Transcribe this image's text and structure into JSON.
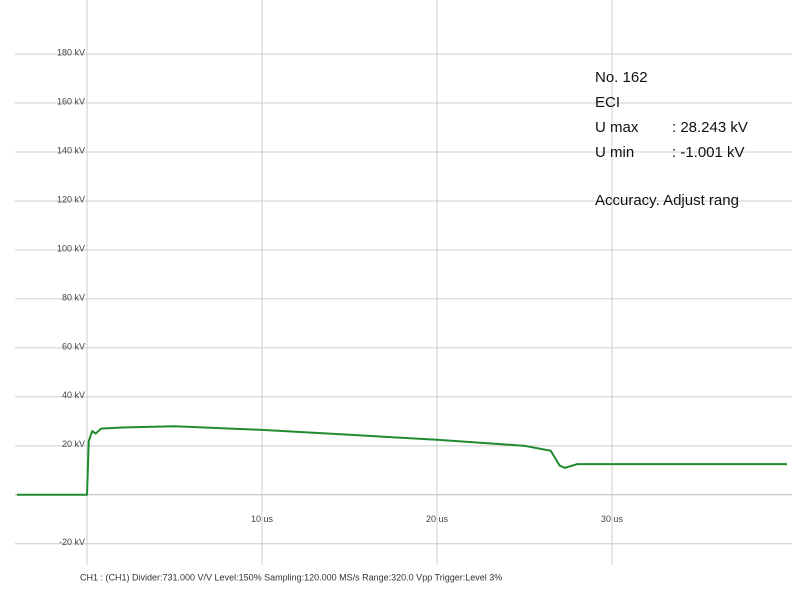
{
  "chart_data": {
    "type": "line",
    "x": [
      -4,
      0,
      0.1,
      0.3,
      0.5,
      0.8,
      2,
      5,
      10,
      15,
      20,
      25,
      26.5,
      27,
      27.3,
      28,
      30,
      35,
      40
    ],
    "series": [
      {
        "color": "#1f8a2e",
        "values": [
          0,
          0,
          22,
          26,
          25,
          27,
          27.5,
          28,
          26.5,
          24.5,
          22.5,
          20,
          18,
          12,
          11,
          12.5,
          12.5,
          12.5,
          12.5
        ]
      }
    ],
    "xlim": [
      -4,
      40
    ],
    "ylim": [
      -25,
      198
    ],
    "xticks": [
      {
        "value": 10,
        "label": "10 us"
      },
      {
        "value": 20,
        "label": "20 us"
      },
      {
        "value": 30,
        "label": "30 us"
      }
    ],
    "yticks": [
      {
        "value": -20,
        "label": "-20 kV"
      },
      {
        "value": 20,
        "label": "20 kV"
      },
      {
        "value": 40,
        "label": "40 kV"
      },
      {
        "value": 60,
        "label": "60 kV"
      },
      {
        "value": 80,
        "label": "80 kV"
      },
      {
        "value": 100,
        "label": "100 kV"
      },
      {
        "value": 120,
        "label": "120 kV"
      },
      {
        "value": 140,
        "label": "140 kV"
      },
      {
        "value": 160,
        "label": "160 kV"
      },
      {
        "value": 180,
        "label": "180 kV"
      }
    ],
    "grid": true,
    "annotations": {
      "number": "No. 162",
      "mode": "ECI",
      "umax_label": "U max",
      "umax_value": ": 28.243 kV",
      "umin_label": "U min",
      "umin_value": ":  -1.001 kV",
      "message": "Accuracy. Adjust rang",
      "footer": "CH1 : (CH1)  Divider:731.000 V/V  Level:150%   Sampling:120.000 MS/s  Range:320.0 Vpp  Trigger:Level 3%"
    }
  }
}
